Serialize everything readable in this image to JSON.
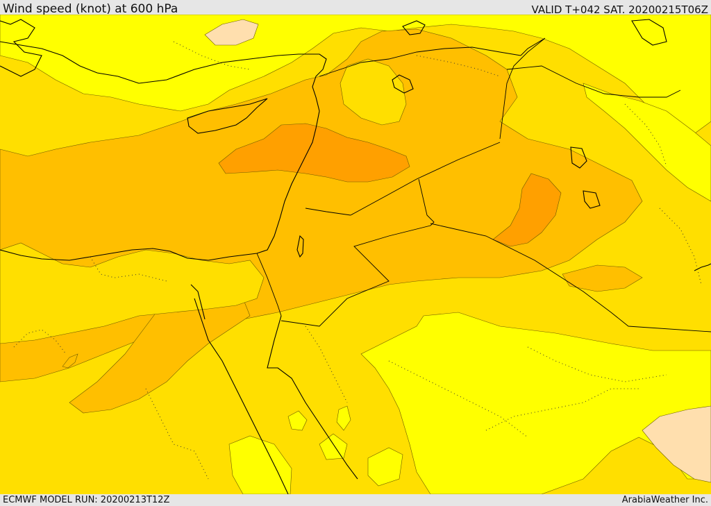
{
  "header": {
    "title": "Wind speed (knot) at 600 hPa",
    "valid": "VALID T+042 SAT. 20200215T06Z"
  },
  "footer": {
    "model_run": "ECMWF MODEL RUN: 20200213T12Z",
    "credit": "ArabiaWeather Inc."
  },
  "map": {
    "shading_colors": {
      "lightest": "#ffdfae",
      "light_yellow": "#ffff00",
      "yellow": "#ffdf00",
      "orange_light": "#ffbf00",
      "orange": "#ffa000"
    },
    "water_color": "#ffff00"
  }
}
